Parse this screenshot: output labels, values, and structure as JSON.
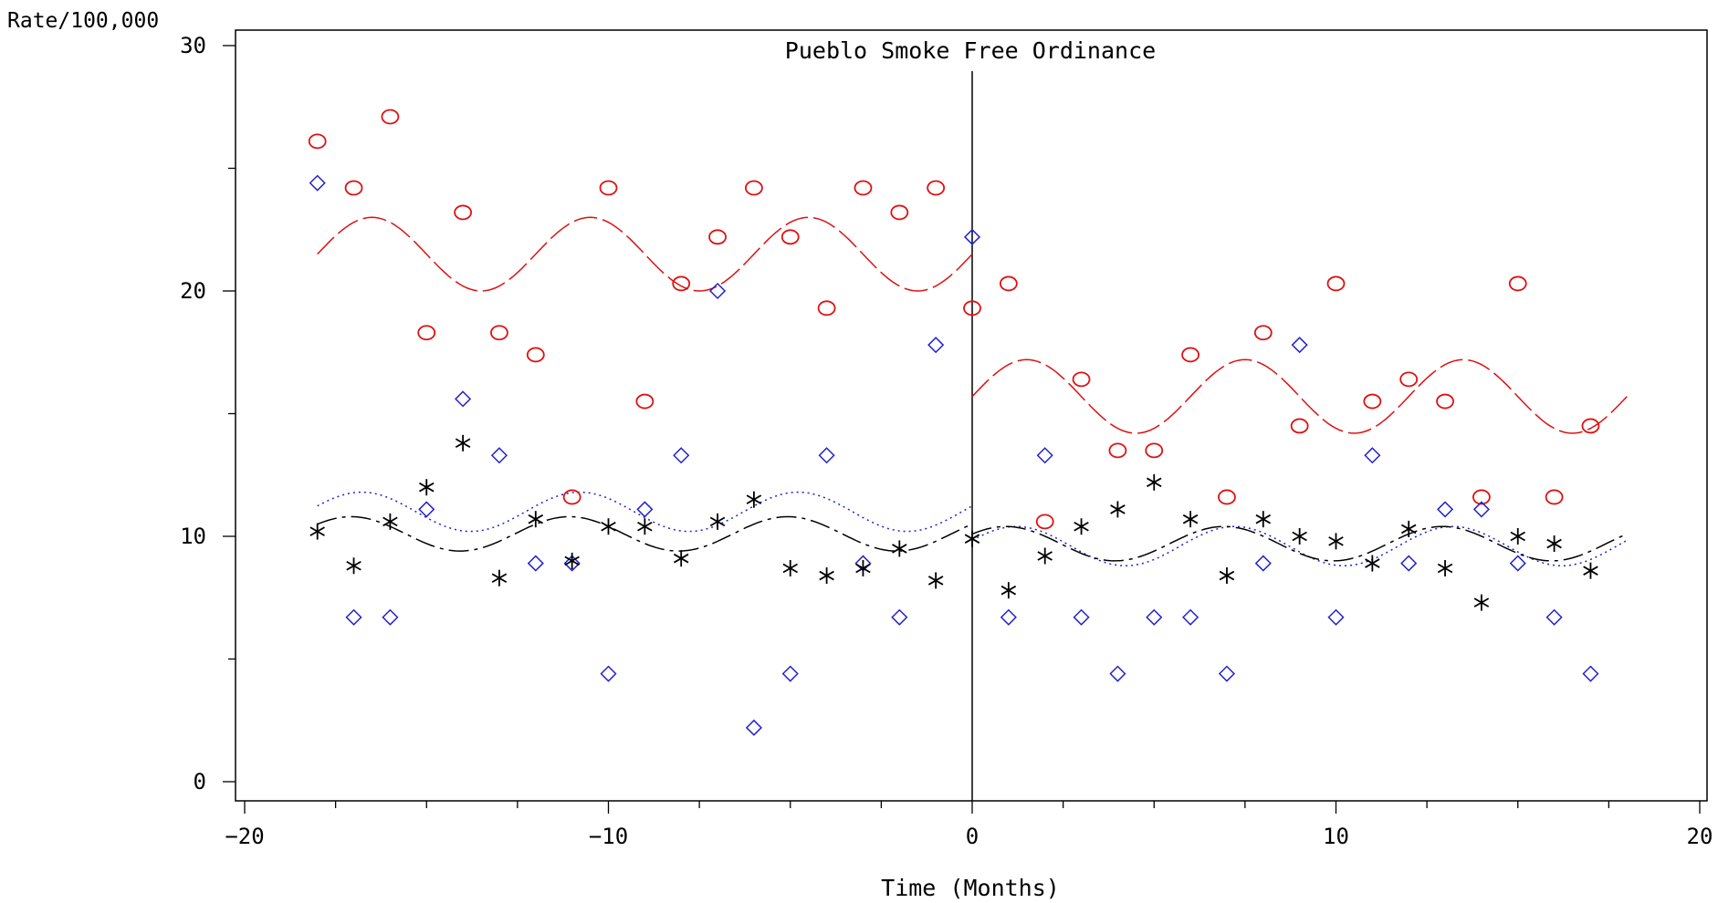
{
  "chart_data": {
    "type": "scatter",
    "title": "",
    "annotation": "Pueblo Smoke Free Ordinance",
    "xlabel": "Time (Months)",
    "ylabel": "Rate/100,000",
    "xlim": [
      -20,
      20
    ],
    "ylim": [
      0,
      30
    ],
    "xticks": [
      -20,
      -10,
      0,
      10,
      20
    ],
    "xtick_labels": [
      "−20",
      "−10",
      "0",
      "10",
      "20"
    ],
    "yticks": [
      0,
      10,
      20,
      30
    ],
    "ytick_labels": [
      "0",
      "10",
      "20",
      "30"
    ],
    "intervention_x": 0,
    "grid": false,
    "legend": "none",
    "series": [
      {
        "marker": "circle",
        "color": "#dd1111",
        "x": [
          -18,
          -17,
          -16,
          -15,
          -14,
          -13,
          -12,
          -11,
          -10,
          -9,
          -8,
          -7,
          -6,
          -5,
          -4,
          -3,
          -2,
          -1,
          0,
          1,
          2,
          3,
          4,
          5,
          6,
          7,
          8,
          9,
          10,
          11,
          12,
          13,
          14,
          15,
          16,
          17
        ],
        "y": [
          26.1,
          24.2,
          27.1,
          18.3,
          23.2,
          18.3,
          17.4,
          11.6,
          24.2,
          15.5,
          20.3,
          22.2,
          24.2,
          22.2,
          19.3,
          24.2,
          23.2,
          24.2,
          19.3,
          20.3,
          10.6,
          16.4,
          13.5,
          13.5,
          17.4,
          11.6,
          18.3,
          14.5,
          20.3,
          15.5,
          16.4,
          15.5,
          11.6,
          20.3,
          11.6,
          14.5
        ]
      },
      {
        "marker": "diamond",
        "color": "#2222cc",
        "x": [
          -18,
          -17,
          -16,
          -15,
          -14,
          -13,
          -12,
          -11,
          -10,
          -9,
          -8,
          -7,
          -6,
          -5,
          -4,
          -3,
          -2,
          -1,
          0,
          1,
          2,
          3,
          4,
          5,
          6,
          7,
          8,
          9,
          10,
          11,
          12,
          13,
          14,
          15,
          16,
          17
        ],
        "y": [
          24.4,
          6.7,
          6.7,
          11.1,
          15.6,
          13.3,
          8.9,
          8.9,
          4.4,
          11.1,
          13.3,
          20.0,
          2.2,
          4.4,
          13.3,
          8.9,
          6.7,
          17.8,
          22.2,
          6.7,
          13.3,
          6.7,
          4.4,
          6.7,
          6.7,
          4.4,
          8.9,
          17.8,
          6.7,
          13.3,
          8.9,
          11.1,
          11.1,
          8.9,
          6.7,
          4.4
        ]
      },
      {
        "marker": "asterisk",
        "color": "#000000",
        "x": [
          -18,
          -17,
          -16,
          -15,
          -14,
          -13,
          -12,
          -11,
          -10,
          -9,
          -8,
          -7,
          -6,
          -5,
          -4,
          -3,
          -2,
          -1,
          0,
          1,
          2,
          3,
          4,
          5,
          6,
          7,
          8,
          9,
          10,
          11,
          12,
          13,
          14,
          15,
          16,
          17
        ],
        "y": [
          10.2,
          8.8,
          10.6,
          12.0,
          13.8,
          8.3,
          10.7,
          9.0,
          10.4,
          10.4,
          9.1,
          10.6,
          11.5,
          8.7,
          8.4,
          8.7,
          9.5,
          8.2,
          9.9,
          7.8,
          9.2,
          10.4,
          11.1,
          12.2,
          10.7,
          8.4,
          10.7,
          10.0,
          9.8,
          8.9,
          10.3,
          8.7,
          7.3,
          10.0,
          9.7,
          8.6
        ]
      }
    ],
    "fits": [
      {
        "style": "dashed",
        "color": "#dd1111",
        "mean_pre": 21.5,
        "mean_post": 15.7,
        "amplitude": 1.5
      },
      {
        "style": "dotted",
        "color": "#2222cc",
        "mean_pre": 11.0,
        "mean_post": 9.6,
        "amplitude": 0.8
      },
      {
        "style": "longdash",
        "color": "#000000",
        "mean_pre": 10.1,
        "mean_post": 9.7,
        "amplitude": 0.7
      }
    ]
  }
}
